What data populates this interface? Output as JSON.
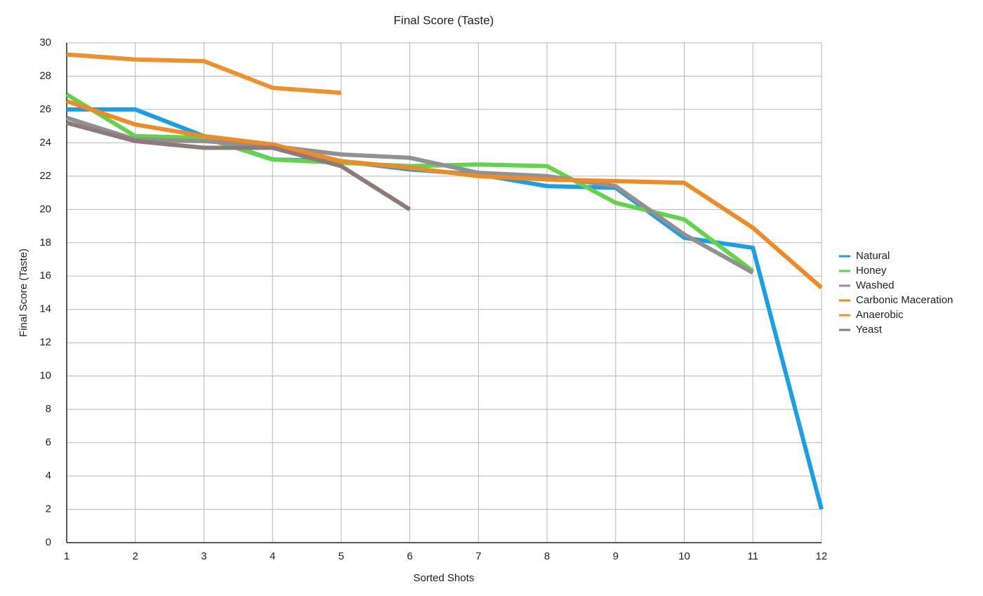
{
  "chart_data": {
    "type": "line",
    "title": "Final Score (Taste)",
    "x_label": "Sorted Shots",
    "y_label": "Final Score (Taste)",
    "x": [
      1,
      2,
      3,
      4,
      5,
      6,
      7,
      8,
      9,
      10,
      11,
      12
    ],
    "series": [
      {
        "name": "Natural",
        "color": "#1a9fe6",
        "values": [
          26.0,
          26.0,
          24.4,
          23.0,
          22.9,
          22.4,
          22.1,
          21.4,
          21.3,
          18.3,
          17.7,
          2.0
        ]
      },
      {
        "name": "Honey",
        "color": "#62d34a",
        "values": [
          26.9,
          24.4,
          24.3,
          23.0,
          22.8,
          22.6,
          22.7,
          22.6,
          20.4,
          19.4,
          16.3,
          null
        ]
      },
      {
        "name": "Washed",
        "color": "#919191",
        "values": [
          25.5,
          24.2,
          24.1,
          23.8,
          23.3,
          23.1,
          22.2,
          22.0,
          21.4,
          18.5,
          16.2,
          null
        ]
      },
      {
        "name": "Carbonic Maceration",
        "color": "#f08a24",
        "values": [
          26.5,
          25.1,
          24.4,
          23.9,
          22.9,
          22.5,
          22.0,
          21.8,
          21.7,
          21.6,
          18.9,
          15.3
        ]
      },
      {
        "name": "Anaerobic",
        "color": "#f0902c",
        "values": [
          29.3,
          29.0,
          28.9,
          27.3,
          27.0,
          null,
          null,
          null,
          null,
          null,
          null,
          null
        ]
      },
      {
        "name": "Yeast",
        "color": "#8e7a7a",
        "values": [
          25.2,
          24.1,
          23.7,
          23.7,
          22.6,
          20.0,
          null,
          null,
          null,
          null,
          null,
          null
        ]
      }
    ],
    "xlim": [
      1,
      12
    ],
    "xticks": [
      1,
      2,
      3,
      4,
      5,
      6,
      7,
      8,
      9,
      10,
      11,
      12
    ],
    "ylim": [
      0,
      30
    ],
    "yticks": [
      0,
      2,
      4,
      6,
      8,
      10,
      12,
      14,
      16,
      18,
      20,
      22,
      24,
      26,
      28,
      30
    ],
    "grid": true,
    "legend": "right"
  }
}
